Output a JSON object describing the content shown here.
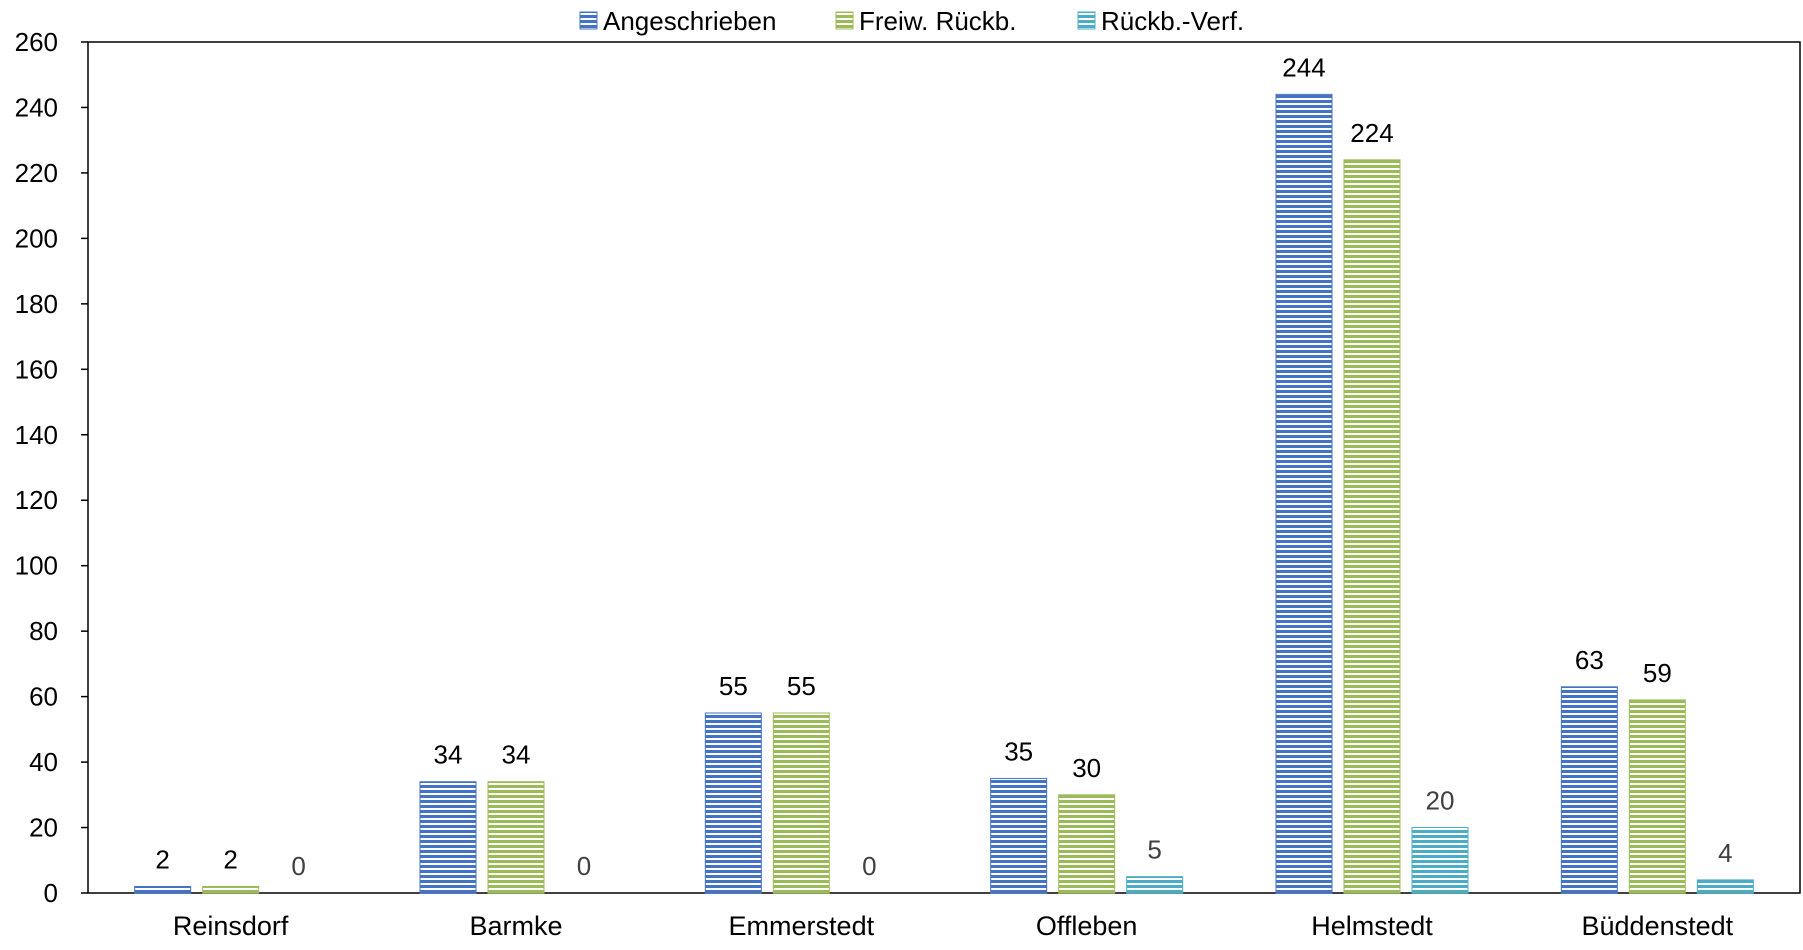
{
  "chart_data": {
    "type": "bar",
    "categories": [
      "Reinsdorf",
      "Barmke",
      "Emmerstedt",
      "Offleben",
      "Helmstedt",
      "Büddenstedt"
    ],
    "series": [
      {
        "name": "Angeschrieben",
        "values": [
          2,
          34,
          55,
          35,
          244,
          63
        ],
        "color": "#4472C4"
      },
      {
        "name": "Freiw. Rückb.",
        "values": [
          2,
          34,
          55,
          30,
          224,
          59
        ],
        "color": "#9BBB59"
      },
      {
        "name": "Rückb.-Verf.",
        "values": [
          0,
          0,
          0,
          5,
          20,
          4
        ],
        "color": "#4BACC6"
      }
    ],
    "ylim": [
      0,
      260
    ],
    "yticks": [
      "0",
      "20",
      "40",
      "60",
      "80",
      "100",
      "120",
      "140",
      "160",
      "180",
      "200",
      "220",
      "240",
      "260"
    ],
    "grid": false,
    "legend_position": "top-center",
    "data_labels": true,
    "bar_fill": "horizontal-striped"
  }
}
